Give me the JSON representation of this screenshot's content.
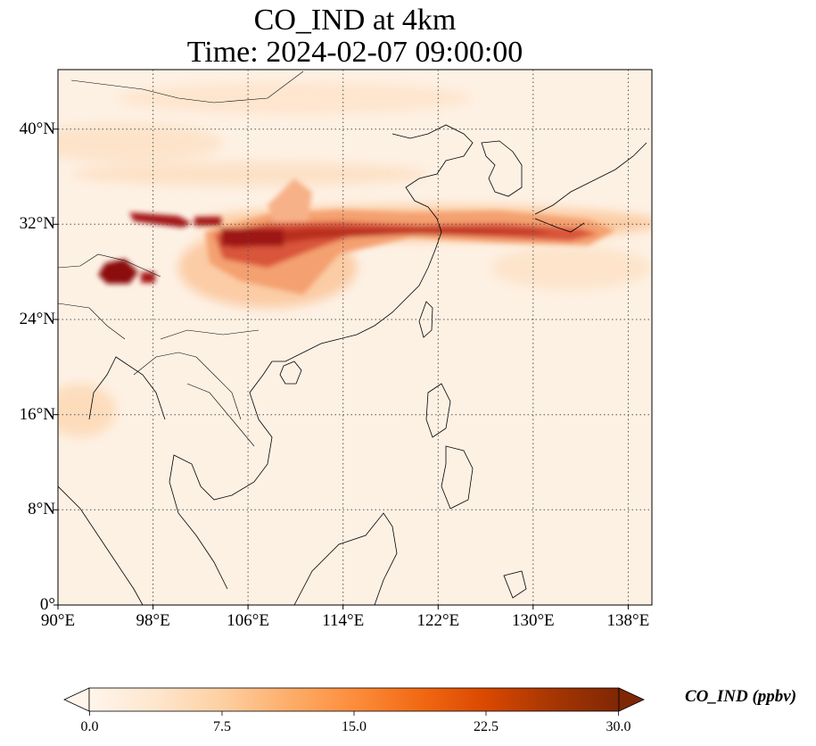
{
  "title_line1": "CO_IND at 4km",
  "title_line2": "Time: 2024-02-07 09:00:00",
  "x_ticks": [
    "90°E",
    "98°E",
    "106°E",
    "114°E",
    "122°E",
    "130°E",
    "138°E"
  ],
  "y_ticks": [
    "40°N",
    "32°N",
    "24°N",
    "16°N",
    "8°N",
    "0°"
  ],
  "extent": {
    "lon_min": 90,
    "lon_max": 140,
    "lat_min": 0,
    "lat_max": 45
  },
  "colorbar": {
    "label": "CO_IND (ppbv)",
    "ticks": [
      "0.0",
      "7.5",
      "15.0",
      "22.5",
      "30.0"
    ],
    "min": 0,
    "max": 30,
    "colors": [
      "#fff5eb",
      "#fee6ce",
      "#fdd0a2",
      "#fdae6b",
      "#fd8d3c",
      "#f16913",
      "#d94801",
      "#a63603",
      "#7f2704"
    ]
  }
}
